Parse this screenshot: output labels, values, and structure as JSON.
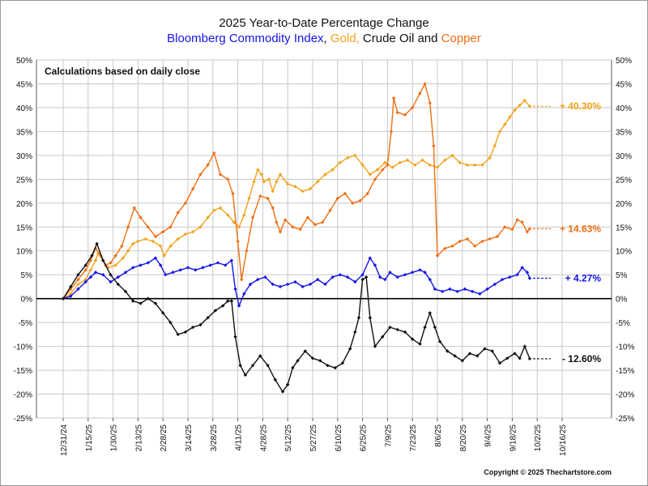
{
  "title": "2025 Year-to-Date Percentage Change",
  "subtitle": {
    "part1": "Bloomberg Commodity Index",
    "sep1": ",",
    "part2": "Gold,",
    "part3": "Crude Oil and",
    "part4": "Copper"
  },
  "note": "Calculations based on daily close",
  "copyright": "Copyright © 2025 Thechartstore.com",
  "colors": {
    "bcom": "#1414e6",
    "gold": "#f2a31b",
    "crude": "#111111",
    "copper": "#f06e14",
    "grid": "#c8c8c8"
  },
  "chart_data": {
    "type": "line",
    "title": "2025 Year-to-Date Percentage Change",
    "ylim": [
      -25,
      50
    ],
    "y_ticks": [
      -25,
      -20,
      -15,
      -10,
      -5,
      0,
      5,
      10,
      15,
      20,
      25,
      30,
      35,
      40,
      45,
      50
    ],
    "y_tick_labels": [
      "-25%",
      "-20%",
      "-15%",
      "-10%",
      "-5%",
      "0%",
      "5%",
      "10%",
      "15%",
      "20%",
      "25%",
      "30%",
      "35%",
      "40%",
      "45%",
      "50%"
    ],
    "x_tick_labels": [
      "12/31/24",
      "1/15/25",
      "1/30/25",
      "2/13/25",
      "2/28/25",
      "3/14/25",
      "3/28/25",
      "4/11/25",
      "4/28/25",
      "5/12/25",
      "5/27/25",
      "6/10/25",
      "6/25/25",
      "7/9/25",
      "7/23/25",
      "8/6/25",
      "8/20/25",
      "9/4/25",
      "9/18/25",
      "10/2/25",
      "10/16/25"
    ],
    "grid": true,
    "series": [
      {
        "name": "Gold",
        "color": "#f2a31b",
        "end_label": "+ 40.30%",
        "points": [
          [
            0,
            0
          ],
          [
            0.3,
            1
          ],
          [
            0.6,
            3
          ],
          [
            0.9,
            4
          ],
          [
            1.1,
            6
          ],
          [
            1.3,
            8
          ],
          [
            1.4,
            9.5
          ],
          [
            1.6,
            8
          ],
          [
            1.8,
            6.5
          ],
          [
            2.1,
            7
          ],
          [
            2.4,
            8.5
          ],
          [
            2.6,
            10
          ],
          [
            2.8,
            11.5
          ],
          [
            3.0,
            12
          ],
          [
            3.3,
            12.5
          ],
          [
            3.6,
            12
          ],
          [
            3.9,
            11
          ],
          [
            4.05,
            9
          ],
          [
            4.3,
            11
          ],
          [
            4.6,
            12.5
          ],
          [
            4.9,
            13.5
          ],
          [
            5.2,
            14
          ],
          [
            5.5,
            15
          ],
          [
            5.8,
            17
          ],
          [
            6.05,
            18.5
          ],
          [
            6.3,
            19
          ],
          [
            6.6,
            17.5
          ],
          [
            6.85,
            16
          ],
          [
            7.05,
            15
          ],
          [
            7.25,
            17.5
          ],
          [
            7.45,
            21
          ],
          [
            7.65,
            24.5
          ],
          [
            7.8,
            27
          ],
          [
            7.95,
            26
          ],
          [
            8.05,
            24.5
          ],
          [
            8.25,
            25
          ],
          [
            8.4,
            22.5
          ],
          [
            8.55,
            24.5
          ],
          [
            8.7,
            26
          ],
          [
            9.0,
            24
          ],
          [
            9.3,
            23.5
          ],
          [
            9.6,
            22.5
          ],
          [
            9.9,
            23
          ],
          [
            10.2,
            24.5
          ],
          [
            10.5,
            26
          ],
          [
            10.8,
            27
          ],
          [
            11.1,
            28.5
          ],
          [
            11.4,
            29.5
          ],
          [
            11.7,
            30
          ],
          [
            12.0,
            28
          ],
          [
            12.3,
            26
          ],
          [
            12.6,
            27
          ],
          [
            12.9,
            28.5
          ],
          [
            13.2,
            27.5
          ],
          [
            13.5,
            28.5
          ],
          [
            13.8,
            29
          ],
          [
            14.1,
            28
          ],
          [
            14.4,
            29
          ],
          [
            14.7,
            28
          ],
          [
            15.0,
            27.5
          ],
          [
            15.3,
            29
          ],
          [
            15.6,
            30
          ],
          [
            15.9,
            28.5
          ],
          [
            16.2,
            28
          ],
          [
            16.5,
            28
          ],
          [
            16.8,
            28
          ],
          [
            17.1,
            29.5
          ],
          [
            17.3,
            32
          ],
          [
            17.5,
            35
          ],
          [
            17.7,
            36.5
          ],
          [
            17.9,
            38
          ],
          [
            18.1,
            39.5
          ],
          [
            18.3,
            40.5
          ],
          [
            18.5,
            41.5
          ],
          [
            18.7,
            40.3
          ]
        ]
      },
      {
        "name": "Copper",
        "color": "#f06e14",
        "end_label": "+ 14.63%",
        "points": [
          [
            0,
            0
          ],
          [
            0.3,
            2
          ],
          [
            0.6,
            4
          ],
          [
            0.9,
            6
          ],
          [
            1.1,
            8
          ],
          [
            1.3,
            10.5
          ],
          [
            1.5,
            9
          ],
          [
            1.7,
            7
          ],
          [
            1.9,
            7.5
          ],
          [
            2.1,
            9
          ],
          [
            2.35,
            11
          ],
          [
            2.6,
            15
          ],
          [
            2.85,
            19
          ],
          [
            3.1,
            17
          ],
          [
            3.4,
            15
          ],
          [
            3.7,
            13
          ],
          [
            4.0,
            14
          ],
          [
            4.3,
            15
          ],
          [
            4.6,
            18
          ],
          [
            4.9,
            20
          ],
          [
            5.2,
            23
          ],
          [
            5.5,
            26
          ],
          [
            5.8,
            28
          ],
          [
            6.05,
            30.5
          ],
          [
            6.3,
            26
          ],
          [
            6.6,
            25
          ],
          [
            6.8,
            22
          ],
          [
            7.0,
            12
          ],
          [
            7.15,
            4
          ],
          [
            7.35,
            10
          ],
          [
            7.6,
            17
          ],
          [
            7.9,
            21.5
          ],
          [
            8.2,
            21
          ],
          [
            8.4,
            19
          ],
          [
            8.55,
            16
          ],
          [
            8.7,
            14
          ],
          [
            8.9,
            16.5
          ],
          [
            9.2,
            15
          ],
          [
            9.5,
            14.5
          ],
          [
            9.8,
            17
          ],
          [
            10.1,
            15.5
          ],
          [
            10.4,
            16
          ],
          [
            10.7,
            18.5
          ],
          [
            11.0,
            21
          ],
          [
            11.3,
            22
          ],
          [
            11.6,
            20
          ],
          [
            11.9,
            20.5
          ],
          [
            12.2,
            22
          ],
          [
            12.5,
            25
          ],
          [
            12.8,
            27
          ],
          [
            13.0,
            28
          ],
          [
            13.15,
            35
          ],
          [
            13.25,
            42
          ],
          [
            13.4,
            39
          ],
          [
            13.7,
            38.5
          ],
          [
            14.0,
            40
          ],
          [
            14.3,
            43
          ],
          [
            14.5,
            45
          ],
          [
            14.7,
            41
          ],
          [
            14.85,
            32
          ],
          [
            15.0,
            9
          ],
          [
            15.3,
            10.5
          ],
          [
            15.6,
            11
          ],
          [
            15.9,
            12
          ],
          [
            16.2,
            12.5
          ],
          [
            16.5,
            11
          ],
          [
            16.8,
            12
          ],
          [
            17.1,
            12.5
          ],
          [
            17.4,
            13
          ],
          [
            17.7,
            15
          ],
          [
            18.0,
            14.5
          ],
          [
            18.2,
            16.5
          ],
          [
            18.4,
            16
          ],
          [
            18.6,
            14
          ],
          [
            18.7,
            14.63
          ]
        ]
      },
      {
        "name": "Bloomberg Commodity Index",
        "color": "#1414e6",
        "end_label": "+ 4.27%",
        "points": [
          [
            0,
            0
          ],
          [
            0.3,
            0.5
          ],
          [
            0.6,
            2
          ],
          [
            0.9,
            3.5
          ],
          [
            1.1,
            4.5
          ],
          [
            1.3,
            5.5
          ],
          [
            1.6,
            5
          ],
          [
            1.9,
            3.5
          ],
          [
            2.2,
            4.5
          ],
          [
            2.5,
            5.5
          ],
          [
            2.8,
            6.5
          ],
          [
            3.1,
            7
          ],
          [
            3.4,
            7.5
          ],
          [
            3.7,
            8.5
          ],
          [
            3.9,
            7
          ],
          [
            4.1,
            5
          ],
          [
            4.4,
            5.5
          ],
          [
            4.7,
            6
          ],
          [
            5.0,
            6.5
          ],
          [
            5.3,
            6
          ],
          [
            5.6,
            6.5
          ],
          [
            5.9,
            7
          ],
          [
            6.2,
            7.5
          ],
          [
            6.5,
            7
          ],
          [
            6.75,
            8
          ],
          [
            6.9,
            2
          ],
          [
            7.05,
            -1.5
          ],
          [
            7.25,
            1
          ],
          [
            7.5,
            3
          ],
          [
            7.8,
            4
          ],
          [
            8.1,
            4.5
          ],
          [
            8.4,
            3
          ],
          [
            8.7,
            2.5
          ],
          [
            9.0,
            3
          ],
          [
            9.3,
            3.5
          ],
          [
            9.6,
            2.5
          ],
          [
            9.9,
            3
          ],
          [
            10.2,
            4
          ],
          [
            10.5,
            3
          ],
          [
            10.8,
            4.5
          ],
          [
            11.1,
            5
          ],
          [
            11.4,
            4.5
          ],
          [
            11.7,
            3.5
          ],
          [
            12.0,
            5
          ],
          [
            12.3,
            8.5
          ],
          [
            12.5,
            7
          ],
          [
            12.7,
            4.5
          ],
          [
            12.9,
            4
          ],
          [
            13.1,
            5.5
          ],
          [
            13.4,
            4.5
          ],
          [
            13.7,
            5
          ],
          [
            14.0,
            5.5
          ],
          [
            14.3,
            6
          ],
          [
            14.5,
            5.5
          ],
          [
            14.7,
            4
          ],
          [
            14.9,
            2
          ],
          [
            15.2,
            1.5
          ],
          [
            15.5,
            2
          ],
          [
            15.8,
            1.5
          ],
          [
            16.1,
            2
          ],
          [
            16.4,
            1.5
          ],
          [
            16.7,
            1
          ],
          [
            17.0,
            2
          ],
          [
            17.3,
            3
          ],
          [
            17.6,
            4
          ],
          [
            17.9,
            4.5
          ],
          [
            18.2,
            5
          ],
          [
            18.4,
            6.5
          ],
          [
            18.6,
            5.5
          ],
          [
            18.7,
            4.27
          ]
        ]
      },
      {
        "name": "Crude Oil",
        "color": "#111111",
        "end_label": "- 12.60%",
        "points": [
          [
            0,
            0
          ],
          [
            0.3,
            2.5
          ],
          [
            0.6,
            5
          ],
          [
            0.9,
            7
          ],
          [
            1.15,
            9
          ],
          [
            1.35,
            11.5
          ],
          [
            1.6,
            8
          ],
          [
            1.9,
            5
          ],
          [
            2.2,
            3
          ],
          [
            2.5,
            1.5
          ],
          [
            2.8,
            -0.5
          ],
          [
            3.1,
            -1
          ],
          [
            3.4,
            0
          ],
          [
            3.7,
            -1
          ],
          [
            4.0,
            -3
          ],
          [
            4.3,
            -5
          ],
          [
            4.6,
            -7.5
          ],
          [
            4.9,
            -7
          ],
          [
            5.2,
            -6
          ],
          [
            5.5,
            -5.5
          ],
          [
            5.8,
            -4
          ],
          [
            6.1,
            -2.5
          ],
          [
            6.4,
            -1.5
          ],
          [
            6.6,
            -0.5
          ],
          [
            6.75,
            -0.5
          ],
          [
            6.9,
            -8
          ],
          [
            7.1,
            -14
          ],
          [
            7.3,
            -16
          ],
          [
            7.6,
            -14
          ],
          [
            7.9,
            -12
          ],
          [
            8.2,
            -14
          ],
          [
            8.5,
            -17
          ],
          [
            8.8,
            -19.5
          ],
          [
            9.0,
            -18
          ],
          [
            9.2,
            -14.5
          ],
          [
            9.4,
            -13
          ],
          [
            9.7,
            -11
          ],
          [
            10.0,
            -12.5
          ],
          [
            10.3,
            -13
          ],
          [
            10.6,
            -14
          ],
          [
            10.9,
            -14.5
          ],
          [
            11.2,
            -13.5
          ],
          [
            11.5,
            -10.5
          ],
          [
            11.7,
            -7
          ],
          [
            11.85,
            -4
          ],
          [
            12.0,
            4
          ],
          [
            12.15,
            4.5
          ],
          [
            12.3,
            -4
          ],
          [
            12.5,
            -10
          ],
          [
            12.8,
            -8
          ],
          [
            13.1,
            -6
          ],
          [
            13.4,
            -6.5
          ],
          [
            13.7,
            -7
          ],
          [
            14.0,
            -8.5
          ],
          [
            14.3,
            -9.5
          ],
          [
            14.5,
            -6
          ],
          [
            14.7,
            -3
          ],
          [
            14.9,
            -6
          ],
          [
            15.1,
            -9
          ],
          [
            15.4,
            -11
          ],
          [
            15.7,
            -12
          ],
          [
            16.0,
            -13
          ],
          [
            16.3,
            -11.5
          ],
          [
            16.6,
            -12
          ],
          [
            16.9,
            -10.5
          ],
          [
            17.2,
            -11
          ],
          [
            17.5,
            -13.5
          ],
          [
            17.8,
            -12.5
          ],
          [
            18.1,
            -11.5
          ],
          [
            18.3,
            -12.5
          ],
          [
            18.5,
            -10
          ],
          [
            18.7,
            -12.6
          ]
        ]
      }
    ]
  }
}
